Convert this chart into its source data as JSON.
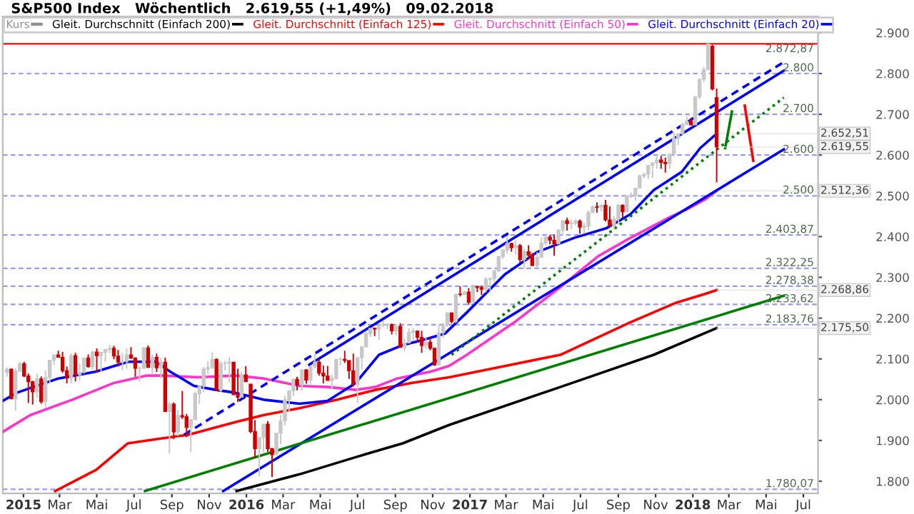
{
  "chart_data": {
    "type": "candlestick",
    "title": "S&P500 Index   Wöchentlich   2.619,55 (+1,49%)   09.02.2018",
    "xlim": [
      "2014-11-28",
      "2018-07-25"
    ],
    "ylim": [
      1770,
      2940
    ],
    "xticks": [
      {
        "value": "2015-01-01",
        "label": "2015"
      },
      {
        "value": "2015-03-01",
        "label": "Mar"
      },
      {
        "value": "2015-05-01",
        "label": "Mai"
      },
      {
        "value": "2015-07-01",
        "label": "Jul"
      },
      {
        "value": "2015-09-01",
        "label": "Sep"
      },
      {
        "value": "2015-11-01",
        "label": "Nov"
      },
      {
        "value": "2016-01-01",
        "label": "2016"
      },
      {
        "value": "2016-03-01",
        "label": "Mar"
      },
      {
        "value": "2016-05-01",
        "label": "Mai"
      },
      {
        "value": "2016-07-01",
        "label": "Jul"
      },
      {
        "value": "2016-09-01",
        "label": "Sep"
      },
      {
        "value": "2016-11-01",
        "label": "Nov"
      },
      {
        "value": "2017-01-01",
        "label": "2017"
      },
      {
        "value": "2017-03-01",
        "label": "Mar"
      },
      {
        "value": "2017-05-01",
        "label": "Mai"
      },
      {
        "value": "2017-07-01",
        "label": "Jul"
      },
      {
        "value": "2017-09-01",
        "label": "Sep"
      },
      {
        "value": "2017-11-01",
        "label": "Nov"
      },
      {
        "value": "2018-01-01",
        "label": "2018"
      },
      {
        "value": "2018-03-01",
        "label": "Mar"
      },
      {
        "value": "2018-05-01",
        "label": "Mai"
      },
      {
        "value": "2018-07-01",
        "label": "Jul"
      }
    ],
    "yticks": [
      {
        "value": 1800,
        "label": "1.800"
      },
      {
        "value": 1900,
        "label": "1.900"
      },
      {
        "value": 2000,
        "label": "2.000"
      },
      {
        "value": 2100,
        "label": "2.100"
      },
      {
        "value": 2200,
        "label": "2.200"
      },
      {
        "value": 2300,
        "label": "2.300"
      },
      {
        "value": 2400,
        "label": "2.400"
      },
      {
        "value": 2500,
        "label": "2.500"
      },
      {
        "value": 2600,
        "label": "2.600"
      },
      {
        "value": 2700,
        "label": "2.700"
      },
      {
        "value": 2800,
        "label": "2.800"
      },
      {
        "value": 2900,
        "label": "2.900"
      }
    ],
    "grid": false,
    "legend": "top left",
    "series": [
      {
        "name": "Kurs",
        "color": "#909090",
        "colors": [
          "#c8c8c8",
          "#cc0000",
          "#c8c8c8",
          "#c8c8c8",
          "#cc0000",
          "#cc0000",
          "#cc0000",
          "#c8c8c8",
          "#cc0000",
          "#c8c8c8",
          "#c8c8c8",
          "#c8c8c8",
          "#cc0000",
          "#cc0000",
          "#cc0000",
          "#c8c8c8",
          "#cc0000",
          "#c8c8c8",
          "#c8c8c8",
          "#cc0000",
          "#c8c8c8",
          "#cc0000",
          "#c8c8c8",
          "#c8c8c8",
          "#c8c8c8",
          "#cc0000",
          "#cc0000",
          "#c8c8c8",
          "#c8c8c8",
          "#cc0000",
          "#cc0000",
          "#c8c8c8",
          "#c8c8c8",
          "#cc0000",
          "#c8c8c8",
          "#cc0000",
          "#c8c8c8",
          "#cc0000",
          "#c8c8c8",
          "#cc0000",
          "#c8c8c8",
          "#cc0000",
          "#cc0000",
          "#c8c8c8",
          "#c8c8c8",
          "#c8c8c8",
          "#c8c8c8",
          "#c8c8c8",
          "#c8c8c8",
          "#cc0000",
          "#c8c8c8",
          "#c8c8c8",
          "#c8c8c8",
          "#cc0000",
          "#cc0000",
          "#c8c8c8",
          "#cc0000",
          "#cc0000",
          "#cc0000",
          "#c8c8c8",
          "#c8c8c8",
          "#cc0000",
          "#cc0000",
          "#c8c8c8",
          "#c8c8c8",
          "#c8c8c8",
          "#c8c8c8",
          "#c8c8c8",
          "#cc0000",
          "#c8c8c8",
          "#cc0000",
          "#c8c8c8",
          "#c8c8c8",
          "#cc0000",
          "#cc0000",
          "#cc0000",
          "#c8c8c8",
          "#c8c8c8",
          "#c8c8c8",
          "#cc0000",
          "#cc0000",
          "#cc0000",
          "#c8c8c8",
          "#c8c8c8",
          "#c8c8c8",
          "#c8c8c8",
          "#cc0000",
          "#c8c8c8",
          "#c8c8c8",
          "#c8c8c8",
          "#cc0000",
          "#c8c8c8",
          "#cc0000",
          "#c8c8c8",
          "#c8c8c8",
          "#c8c8c8",
          "#cc0000",
          "#cc0000",
          "#c8c8c8",
          "#cc0000",
          "#cc0000",
          "#c8c8c8",
          "#c8c8c8",
          "#c8c8c8",
          "#cc0000",
          "#c8c8c8",
          "#cc0000",
          "#c8c8c8",
          "#cc0000",
          "#c8c8c8",
          "#cc0000",
          "#cc0000",
          "#c8c8c8",
          "#c8c8c8",
          "#c8c8c8",
          "#c8c8c8",
          "#c8c8c8",
          "#c8c8c8",
          "#cc0000",
          "#c8c8c8",
          "#cc0000",
          "#c8c8c8",
          "#cc0000",
          "#cc0000",
          "#c8c8c8",
          "#c8c8c8",
          "#c8c8c8",
          "#cc0000",
          "#cc0000",
          "#c8c8c8",
          "#c8c8c8",
          "#cc0000",
          "#c8c8c8",
          "#c8c8c8",
          "#cc0000",
          "#c8c8c8",
          "#c8c8c8",
          "#c8c8c8",
          "#cc0000",
          "#c8c8c8",
          "#cc0000",
          "#cc0000",
          "#c8c8c8",
          "#c8c8c8",
          "#cc0000",
          "#c8c8c8",
          "#c8c8c8",
          "#c8c8c8",
          "#c8c8c8",
          "#c8c8c8",
          "#c8c8c8",
          "#c8c8c8",
          "#c8c8c8",
          "#cc0000",
          "#cc0000",
          "#c8c8c8",
          "#c8c8c8",
          "#c8c8c8",
          "#c8c8c8",
          "#c8c8c8",
          "#cc0000",
          "#c8c8c8",
          "#c8c8c8",
          "#c8c8c8",
          "#c8c8c8",
          "#cc0000",
          "#cc0000"
        ],
        "x": [
          "2014-12-05",
          "2014-12-12",
          "2014-12-19",
          "2014-12-26",
          "2015-01-02",
          "2015-01-09",
          "2015-01-16",
          "2015-01-23",
          "2015-01-30",
          "2015-02-06",
          "2015-02-13",
          "2015-02-20",
          "2015-02-27",
          "2015-03-06",
          "2015-03-13",
          "2015-03-20",
          "2015-03-27",
          "2015-04-03",
          "2015-04-10",
          "2015-04-17",
          "2015-04-24",
          "2015-05-01",
          "2015-05-08",
          "2015-05-15",
          "2015-05-22",
          "2015-05-29",
          "2015-06-05",
          "2015-06-12",
          "2015-06-19",
          "2015-06-26",
          "2015-07-03",
          "2015-07-10",
          "2015-07-17",
          "2015-07-24",
          "2015-07-31",
          "2015-08-07",
          "2015-08-14",
          "2015-08-21",
          "2015-08-28",
          "2015-09-04",
          "2015-09-11",
          "2015-09-18",
          "2015-09-25",
          "2015-10-02",
          "2015-10-09",
          "2015-10-16",
          "2015-10-23",
          "2015-10-30",
          "2015-11-06",
          "2015-11-13",
          "2015-11-20",
          "2015-11-27",
          "2015-12-04",
          "2015-12-11",
          "2015-12-18",
          "2015-12-24",
          "2015-12-31",
          "2016-01-08",
          "2016-01-15",
          "2016-01-22",
          "2016-01-29",
          "2016-02-05",
          "2016-02-12",
          "2016-02-19",
          "2016-02-26",
          "2016-03-04",
          "2016-03-11",
          "2016-03-18",
          "2016-03-24",
          "2016-04-01",
          "2016-04-08",
          "2016-04-15",
          "2016-04-22",
          "2016-04-29",
          "2016-05-06",
          "2016-05-13",
          "2016-05-20",
          "2016-05-27",
          "2016-06-03",
          "2016-06-10",
          "2016-06-17",
          "2016-06-24",
          "2016-07-01",
          "2016-07-08",
          "2016-07-15",
          "2016-07-22",
          "2016-07-29",
          "2016-08-05",
          "2016-08-12",
          "2016-08-19",
          "2016-08-26",
          "2016-09-02",
          "2016-09-09",
          "2016-09-16",
          "2016-09-23",
          "2016-09-30",
          "2016-10-07",
          "2016-10-14",
          "2016-10-21",
          "2016-10-28",
          "2016-11-04",
          "2016-11-11",
          "2016-11-18",
          "2016-11-25",
          "2016-12-02",
          "2016-12-09",
          "2016-12-16",
          "2016-12-23",
          "2016-12-30",
          "2017-01-06",
          "2017-01-13",
          "2017-01-20",
          "2017-01-27",
          "2017-02-03",
          "2017-02-10",
          "2017-02-17",
          "2017-02-24",
          "2017-03-03",
          "2017-03-10",
          "2017-03-17",
          "2017-03-24",
          "2017-03-31",
          "2017-04-07",
          "2017-04-13",
          "2017-04-21",
          "2017-04-28",
          "2017-05-05",
          "2017-05-12",
          "2017-05-19",
          "2017-05-26",
          "2017-06-02",
          "2017-06-09",
          "2017-06-16",
          "2017-06-23",
          "2017-06-30",
          "2017-07-07",
          "2017-07-14",
          "2017-07-21",
          "2017-07-28",
          "2017-08-04",
          "2017-08-11",
          "2017-08-18",
          "2017-08-25",
          "2017-09-01",
          "2017-09-08",
          "2017-09-15",
          "2017-09-22",
          "2017-09-29",
          "2017-10-06",
          "2017-10-13",
          "2017-10-20",
          "2017-10-27",
          "2017-11-03",
          "2017-11-10",
          "2017-11-17",
          "2017-11-24",
          "2017-12-01",
          "2017-12-08",
          "2017-12-15",
          "2017-12-22",
          "2017-12-29",
          "2018-01-05",
          "2018-01-12",
          "2018-01-19",
          "2018-01-26",
          "2018-02-02",
          "2018-02-09"
        ],
        "ohlc": [
          [
            2067,
            2079,
            2056,
            2075
          ],
          [
            2075,
            2076,
            2002,
            2002
          ],
          [
            2002,
            2077,
            1973,
            2070
          ],
          [
            2070,
            2094,
            2069,
            2088
          ],
          [
            2088,
            2093,
            2055,
            2058
          ],
          [
            2058,
            2064,
            1992,
            2044
          ],
          [
            2044,
            2046,
            1988,
            2019
          ],
          [
            2019,
            2064,
            2004,
            2051
          ],
          [
            2051,
            2057,
            1990,
            1995
          ],
          [
            1995,
            2072,
            1981,
            2055
          ],
          [
            2055,
            2097,
            2041,
            2097
          ],
          [
            2097,
            2110,
            2085,
            2110
          ],
          [
            2110,
            2120,
            2103,
            2104
          ],
          [
            2104,
            2117,
            2066,
            2071
          ],
          [
            2071,
            2081,
            2040,
            2053
          ],
          [
            2053,
            2114,
            2039,
            2108
          ],
          [
            2108,
            2115,
            2045,
            2061
          ],
          [
            2061,
            2089,
            2048,
            2067
          ],
          [
            2067,
            2103,
            2064,
            2102
          ],
          [
            2102,
            2111,
            2079,
            2081
          ],
          [
            2081,
            2120,
            2073,
            2117
          ],
          [
            2117,
            2126,
            2067,
            2108
          ],
          [
            2108,
            2117,
            2068,
            2116
          ],
          [
            2116,
            2124,
            2093,
            2123
          ],
          [
            2123,
            2135,
            2114,
            2126
          ],
          [
            2126,
            2132,
            2099,
            2107
          ],
          [
            2107,
            2122,
            2081,
            2092
          ],
          [
            2092,
            2115,
            2072,
            2094
          ],
          [
            2094,
            2126,
            2076,
            2110
          ],
          [
            2110,
            2129,
            2100,
            2102
          ],
          [
            2102,
            2104,
            2056,
            2077
          ],
          [
            2077,
            2082,
            2045,
            2077
          ],
          [
            2077,
            2129,
            2077,
            2127
          ],
          [
            2127,
            2133,
            2078,
            2079
          ],
          [
            2079,
            2111,
            2063,
            2104
          ],
          [
            2104,
            2113,
            2068,
            2078
          ],
          [
            2078,
            2103,
            2052,
            2092
          ],
          [
            2092,
            2103,
            1971,
            1971
          ],
          [
            1971,
            1993,
            1867,
            1989
          ],
          [
            1989,
            1993,
            1903,
            1921
          ],
          [
            1921,
            1975,
            1911,
            1961
          ],
          [
            1961,
            2021,
            1953,
            1958
          ],
          [
            1958,
            1965,
            1908,
            1932
          ],
          [
            1932,
            1953,
            1872,
            1951
          ],
          [
            1951,
            2020,
            1951,
            2015
          ],
          [
            2015,
            2034,
            1990,
            2033
          ],
          [
            2033,
            2080,
            2018,
            2075
          ],
          [
            2075,
            2094,
            2062,
            2079
          ],
          [
            2079,
            2116,
            2075,
            2099
          ],
          [
            2099,
            2101,
            2022,
            2023
          ],
          [
            2023,
            2094,
            2019,
            2089
          ],
          [
            2089,
            2095,
            2071,
            2090
          ],
          [
            2090,
            2104,
            2042,
            2092
          ],
          [
            2092,
            2093,
            2012,
            2012
          ],
          [
            2012,
            2076,
            1994,
            2006
          ],
          [
            2006,
            2067,
            2006,
            2061
          ],
          [
            2061,
            2082,
            2043,
            2044
          ],
          [
            2038,
            2038,
            1918,
            1922
          ],
          [
            1922,
            1950,
            1857,
            1880
          ],
          [
            1880,
            1908,
            1812,
            1907
          ],
          [
            1907,
            1940,
            1872,
            1940
          ],
          [
            1940,
            1947,
            1872,
            1880
          ],
          [
            1880,
            1881,
            1810,
            1865
          ],
          [
            1865,
            1918,
            1865,
            1918
          ],
          [
            1918,
            1962,
            1891,
            1948
          ],
          [
            1948,
            2009,
            1937,
            2000
          ],
          [
            2000,
            2022,
            1969,
            2022
          ],
          [
            2022,
            2052,
            2009,
            2050
          ],
          [
            2050,
            2056,
            2023,
            2036
          ],
          [
            2036,
            2075,
            2022,
            2073
          ],
          [
            2073,
            2075,
            2039,
            2048
          ],
          [
            2048,
            2084,
            2039,
            2081
          ],
          [
            2081,
            2112,
            2077,
            2092
          ],
          [
            2092,
            2099,
            2059,
            2065
          ],
          [
            2065,
            2084,
            2040,
            2058
          ],
          [
            2058,
            2083,
            2047,
            2047
          ],
          [
            2047,
            2061,
            2025,
            2052
          ],
          [
            2052,
            2100,
            2049,
            2099
          ],
          [
            2099,
            2103,
            2084,
            2099
          ],
          [
            2099,
            2120,
            2090,
            2096
          ],
          [
            2096,
            2097,
            2051,
            2071
          ],
          [
            2071,
            2113,
            2032,
            2037
          ],
          [
            2037,
            2104,
            1992,
            2103
          ],
          [
            2103,
            2131,
            2074,
            2130
          ],
          [
            2130,
            2169,
            2127,
            2162
          ],
          [
            2162,
            2175,
            2154,
            2175
          ],
          [
            2175,
            2177,
            2156,
            2173
          ],
          [
            2173,
            2183,
            2147,
            2183
          ],
          [
            2183,
            2194,
            2178,
            2184
          ],
          [
            2184,
            2187,
            2173,
            2184
          ],
          [
            2184,
            2187,
            2160,
            2169
          ],
          [
            2169,
            2185,
            2157,
            2180
          ],
          [
            2180,
            2187,
            2128,
            2128
          ],
          [
            2128,
            2150,
            2119,
            2139
          ],
          [
            2139,
            2175,
            2138,
            2165
          ],
          [
            2165,
            2175,
            2145,
            2168
          ],
          [
            2168,
            2170,
            2142,
            2153
          ],
          [
            2153,
            2169,
            2115,
            2133
          ],
          [
            2133,
            2154,
            2124,
            2141
          ],
          [
            2141,
            2152,
            2121,
            2126
          ],
          [
            2126,
            2127,
            2083,
            2085
          ],
          [
            2085,
            2183,
            2085,
            2164
          ],
          [
            2164,
            2189,
            2151,
            2182
          ],
          [
            2182,
            2214,
            2179,
            2213
          ],
          [
            2213,
            2214,
            2187,
            2192
          ],
          [
            2192,
            2260,
            2188,
            2259
          ],
          [
            2259,
            2278,
            2253,
            2258
          ],
          [
            2258,
            2268,
            2257,
            2264
          ],
          [
            2264,
            2274,
            2233,
            2239
          ],
          [
            2239,
            2282,
            2238,
            2277
          ],
          [
            2277,
            2280,
            2264,
            2275
          ],
          [
            2275,
            2279,
            2257,
            2271
          ],
          [
            2271,
            2301,
            2263,
            2295
          ],
          [
            2295,
            2299,
            2267,
            2297
          ],
          [
            2297,
            2319,
            2288,
            2316
          ],
          [
            2316,
            2352,
            2313,
            2351
          ],
          [
            2351,
            2368,
            2345,
            2367
          ],
          [
            2367,
            2401,
            2358,
            2383
          ],
          [
            2383,
            2385,
            2363,
            2373
          ],
          [
            2373,
            2390,
            2356,
            2378
          ],
          [
            2378,
            2382,
            2336,
            2344
          ],
          [
            2344,
            2370,
            2322,
            2363
          ],
          [
            2363,
            2379,
            2344,
            2355
          ],
          [
            2355,
            2360,
            2328,
            2329
          ],
          [
            2329,
            2362,
            2322,
            2349
          ],
          [
            2349,
            2398,
            2349,
            2384
          ],
          [
            2384,
            2400,
            2378,
            2399
          ],
          [
            2399,
            2404,
            2381,
            2391
          ],
          [
            2391,
            2405,
            2353,
            2382
          ],
          [
            2382,
            2418,
            2382,
            2416
          ],
          [
            2416,
            2440,
            2404,
            2439
          ],
          [
            2439,
            2446,
            2415,
            2432
          ],
          [
            2432,
            2441,
            2419,
            2433
          ],
          [
            2433,
            2442,
            2428,
            2438
          ],
          [
            2438,
            2442,
            2407,
            2423
          ],
          [
            2423,
            2434,
            2407,
            2425
          ],
          [
            2425,
            2464,
            2416,
            2459
          ],
          [
            2459,
            2477,
            2458,
            2473
          ],
          [
            2473,
            2484,
            2459,
            2472
          ],
          [
            2472,
            2480,
            2462,
            2477
          ],
          [
            2477,
            2490,
            2437,
            2441
          ],
          [
            2441,
            2474,
            2426,
            2426
          ],
          [
            2426,
            2451,
            2417,
            2443
          ],
          [
            2443,
            2480,
            2429,
            2477
          ],
          [
            2477,
            2479,
            2446,
            2461
          ],
          [
            2461,
            2500,
            2461,
            2500
          ],
          [
            2500,
            2508,
            2495,
            2502
          ],
          [
            2502,
            2520,
            2488,
            2519
          ],
          [
            2519,
            2552,
            2518,
            2549
          ],
          [
            2549,
            2556,
            2543,
            2553
          ],
          [
            2553,
            2576,
            2542,
            2575
          ],
          [
            2575,
            2582,
            2544,
            2581
          ],
          [
            2581,
            2597,
            2566,
            2588
          ],
          [
            2588,
            2598,
            2566,
            2582
          ],
          [
            2582,
            2594,
            2557,
            2579
          ],
          [
            2579,
            2605,
            2566,
            2602
          ],
          [
            2602,
            2657,
            2597,
            2642
          ],
          [
            2642,
            2652,
            2624,
            2652
          ],
          [
            2652,
            2679,
            2650,
            2675
          ],
          [
            2675,
            2695,
            2673,
            2683
          ],
          [
            2683,
            2692,
            2673,
            2674
          ],
          [
            2674,
            2744,
            2674,
            2743
          ],
          [
            2743,
            2787,
            2737,
            2786
          ],
          [
            2786,
            2816,
            2779,
            2810
          ],
          [
            2810,
            2873,
            2808,
            2873
          ],
          [
            2867,
            2870,
            2759,
            2762
          ],
          [
            2741,
            2763,
            2533,
            2620
          ]
        ]
      },
      {
        "type": "line",
        "name": "Gleit. Durchschnitt (Einfach 200)",
        "color": "#000000",
        "value_labels": [
          null,
          null,
          null,
          null,
          null,
          null,
          null,
          "2.175,50"
        ],
        "x": [
          "2015-12-16",
          "2016-03-28",
          "2016-06-28",
          "2016-09-13",
          "2016-11-28",
          "2017-05-29",
          "2017-10-29",
          "2018-02-09"
        ],
        "values": [
          1776,
          1817,
          1859,
          1893,
          1938,
          2031,
          2110,
          2175.5
        ]
      },
      {
        "type": "line",
        "name": "Gleit. Durchschnitt (Einfach 125)",
        "color": "#ff0000",
        "value_labels": [
          null,
          null,
          null,
          null,
          null,
          null,
          null,
          null,
          null,
          null,
          null,
          null,
          null,
          null,
          null,
          null,
          "2.268,86"
        ],
        "x": [
          "2015-02-22",
          "2015-04-30",
          "2015-06-21",
          "2015-08-06",
          "2015-09-28",
          "2015-12-14",
          "2016-01-29",
          "2016-03-28",
          "2016-05-29",
          "2016-07-30",
          "2016-09-27",
          "2016-11-28",
          "2017-05-29",
          "2017-09-21",
          "2017-12-05",
          "2018-01-20",
          "2018-02-09"
        ],
        "values": [
          1776,
          1828,
          1893,
          1903,
          1914,
          1945,
          1962,
          1979,
          2000,
          2024,
          2041,
          2055,
          2110,
          2190,
          2238,
          2259,
          2268.86
        ]
      },
      {
        "type": "line",
        "name": "Gleit. Durchschnitt (Einfach 50)",
        "color": "#ff33cc",
        "value_labels": [
          null,
          null,
          null,
          null,
          null,
          null,
          null,
          null,
          null,
          null,
          null,
          null,
          null,
          null,
          null,
          null,
          null,
          null,
          null,
          null,
          null,
          null,
          null,
          null,
          "2.512,36"
        ],
        "x": [
          "2014-11-28",
          "2015-01-12",
          "2015-03-22",
          "2015-05-29",
          "2015-07-21",
          "2015-08-17",
          "2015-10-14",
          "2015-12-14",
          "2016-01-29",
          "2016-03-28",
          "2016-05-13",
          "2016-06-28",
          "2016-07-30",
          "2016-09-04",
          "2016-10-29",
          "2016-11-28",
          "2016-12-27",
          "2017-03-15",
          "2017-05-29",
          "2017-07-30",
          "2017-09-21",
          "2017-11-21",
          "2017-12-21",
          "2018-01-20",
          "2018-02-09"
        ],
        "values": [
          1921,
          1962,
          2000,
          2041,
          2059,
          2059,
          2055,
          2059,
          2052,
          2034,
          2031,
          2024,
          2031,
          2052,
          2069,
          2083,
          2110,
          2190,
          2276,
          2352,
          2397,
          2445,
          2466,
          2490,
          2512.36
        ]
      },
      {
        "type": "line",
        "name": "Gleit. Durchschnitt (Einfach 20)",
        "color": "#0000ff",
        "value_labels": [
          null,
          null,
          null,
          null,
          null,
          null,
          null,
          null,
          null,
          null,
          null,
          null,
          null,
          null,
          null,
          null,
          null,
          null,
          null,
          null,
          null,
          null,
          null,
          null,
          null,
          null,
          null,
          "2.652,51"
        ],
        "x": [
          "2014-11-28",
          "2014-12-21",
          "2015-02-27",
          "2015-04-30",
          "2015-06-21",
          "2015-08-06",
          "2015-08-29",
          "2015-10-07",
          "2015-11-12",
          "2015-12-14",
          "2016-01-29",
          "2016-03-28",
          "2016-05-13",
          "2016-06-28",
          "2016-08-05",
          "2016-09-13",
          "2016-10-13",
          "2016-11-21",
          "2016-12-27",
          "2017-02-27",
          "2017-04-21",
          "2017-06-21",
          "2017-08-13",
          "2017-09-21",
          "2017-10-29",
          "2017-12-14",
          "2018-01-13",
          "2018-02-09"
        ],
        "values": [
          1997,
          2017,
          2052,
          2069,
          2093,
          2093,
          2069,
          2034,
          2024,
          2017,
          2000,
          1990,
          1997,
          2041,
          2110,
          2134,
          2145,
          2162,
          2214,
          2307,
          2362,
          2397,
          2421,
          2455,
          2514,
          2559,
          2617,
          2652.51
        ]
      },
      {
        "type": "line",
        "color": "#0000ff",
        "line_style": "solid",
        "x": [
          "2016-04-13",
          "2018-05-30"
        ],
        "values": [
          2086,
          2807
        ]
      },
      {
        "type": "line",
        "color": "#0000ff",
        "line_style": "dashed",
        "x": [
          "2015-09-21",
          "2018-05-30"
        ],
        "values": [
          1914,
          2828
        ]
      },
      {
        "type": "line",
        "color": "#0000ff",
        "line_style": "solid",
        "x": [
          "2015-11-24",
          "2018-05-30"
        ],
        "values": [
          1776,
          2614
        ]
      },
      {
        "type": "line",
        "color": "#008000",
        "line_style": "solid",
        "x": [
          "2015-07-19",
          "2018-05-30"
        ],
        "values": [
          1776,
          2255
        ]
      },
      {
        "type": "line",
        "color": "#008000",
        "line_style": "dotted",
        "x": [
          "2016-12-02",
          "2018-05-30"
        ],
        "values": [
          2110,
          2741
        ]
      },
      {
        "type": "line",
        "color": "#008000",
        "line_style": "solid",
        "x": [
          "2018-02-23",
          "2018-03-06"
        ],
        "values": [
          2617,
          2707
        ]
      },
      {
        "type": "line",
        "color": "#ff0000",
        "line_style": "solid",
        "x": [
          "2018-03-27",
          "2018-04-10"
        ],
        "values": [
          2721,
          2586
        ]
      }
    ],
    "ref_lines": [
      {
        "axis": "y",
        "value": 2872.87,
        "label": "2.872,87",
        "color": "#ff0000",
        "line_style": "solid"
      },
      {
        "axis": "y",
        "value": 2800,
        "label": "2.800",
        "color": "#9999ee",
        "line_style": "dashed"
      },
      {
        "axis": "y",
        "value": 2700,
        "label": "2.700",
        "color": "#9999ee",
        "line_style": "dashed"
      },
      {
        "axis": "y",
        "value": 2600,
        "label": "2.600",
        "color": "#9999ee",
        "line_style": "dashed"
      },
      {
        "axis": "y",
        "value": 2500,
        "label": "2.500",
        "color": "#9999ee",
        "line_style": "dashed"
      },
      {
        "axis": "y",
        "value": 2403.87,
        "label": "2.403,87",
        "color": "#9999ee",
        "line_style": "dashed"
      },
      {
        "axis": "y",
        "value": 2322.25,
        "label": "2.322,25",
        "color": "#9999ee",
        "line_style": "dashed"
      },
      {
        "axis": "y",
        "value": 2278.38,
        "label": "2.278,38",
        "color": "#9999ee",
        "line_style": "dashed"
      },
      {
        "axis": "y",
        "value": 2233.62,
        "label": "2.233,62",
        "color": "#9999ee",
        "line_style": "dashed"
      },
      {
        "axis": "y",
        "value": 2183.76,
        "label": "2.183,76",
        "color": "#9999ee",
        "line_style": "dashed"
      },
      {
        "axis": "y",
        "value": 1780.07,
        "label": "1.780,07",
        "color": "#9999ee",
        "line_style": "dashed"
      }
    ],
    "annotations": [
      {
        "text": "2.619,55",
        "x": "2018-02-09",
        "y": 2619.55
      }
    ]
  }
}
